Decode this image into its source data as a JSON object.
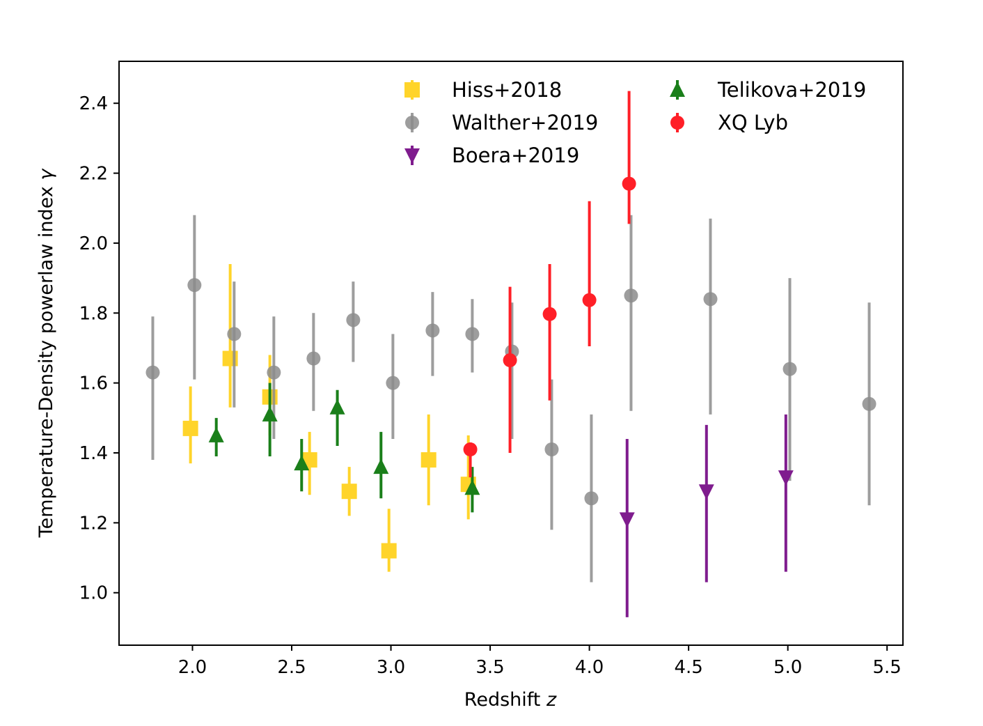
{
  "chart_data": {
    "type": "scatter",
    "title": "",
    "xlabel": "Redshift",
    "xlabel_var": "z",
    "ylabel": "Temperature-Density powerlaw index",
    "ylabel_var": "γ",
    "xlim": [
      1.63,
      5.58
    ],
    "ylim": [
      0.85,
      2.52
    ],
    "xticks": [
      2.0,
      2.5,
      3.0,
      3.5,
      4.0,
      4.5,
      5.0,
      5.5
    ],
    "yticks": [
      1.0,
      1.2,
      1.4,
      1.6,
      1.8,
      2.0,
      2.2,
      2.4
    ],
    "xtick_labels": [
      "2.0",
      "2.5",
      "3.0",
      "3.5",
      "4.0",
      "4.5",
      "5.0",
      "5.5"
    ],
    "ytick_labels": [
      "1.0",
      "1.2",
      "1.4",
      "1.6",
      "1.8",
      "2.0",
      "2.2",
      "2.4"
    ],
    "grid": false,
    "legend_position": "top-right",
    "legend_columns": 2,
    "series": [
      {
        "name": "Hiss+2018",
        "marker": "square",
        "color": "#FFD42A",
        "points": [
          {
            "x": 1.99,
            "y": 1.47,
            "lo": 1.37,
            "hi": 1.59
          },
          {
            "x": 2.19,
            "y": 1.67,
            "lo": 1.53,
            "hi": 1.94
          },
          {
            "x": 2.39,
            "y": 1.56,
            "lo": 1.45,
            "hi": 1.68
          },
          {
            "x": 2.59,
            "y": 1.38,
            "lo": 1.28,
            "hi": 1.46
          },
          {
            "x": 2.79,
            "y": 1.29,
            "lo": 1.22,
            "hi": 1.36
          },
          {
            "x": 2.99,
            "y": 1.12,
            "lo": 1.06,
            "hi": 1.24
          },
          {
            "x": 3.19,
            "y": 1.38,
            "lo": 1.25,
            "hi": 1.51
          },
          {
            "x": 3.39,
            "y": 1.31,
            "lo": 1.21,
            "hi": 1.45
          }
        ]
      },
      {
        "name": "Walther+2019",
        "marker": "circle",
        "color": "#8C8C8C",
        "points": [
          {
            "x": 1.8,
            "y": 1.63,
            "lo": 1.38,
            "hi": 1.79
          },
          {
            "x": 2.01,
            "y": 1.88,
            "lo": 1.61,
            "hi": 2.08
          },
          {
            "x": 2.21,
            "y": 1.74,
            "lo": 1.53,
            "hi": 1.89
          },
          {
            "x": 2.41,
            "y": 1.63,
            "lo": 1.44,
            "hi": 1.79
          },
          {
            "x": 2.61,
            "y": 1.67,
            "lo": 1.52,
            "hi": 1.8
          },
          {
            "x": 2.81,
            "y": 1.78,
            "lo": 1.66,
            "hi": 1.89
          },
          {
            "x": 3.01,
            "y": 1.6,
            "lo": 1.44,
            "hi": 1.74
          },
          {
            "x": 3.21,
            "y": 1.75,
            "lo": 1.62,
            "hi": 1.86
          },
          {
            "x": 3.41,
            "y": 1.74,
            "lo": 1.63,
            "hi": 1.84
          },
          {
            "x": 3.61,
            "y": 1.69,
            "lo": 1.44,
            "hi": 1.83
          },
          {
            "x": 3.81,
            "y": 1.41,
            "lo": 1.18,
            "hi": 1.61
          },
          {
            "x": 4.01,
            "y": 1.27,
            "lo": 1.03,
            "hi": 1.51
          },
          {
            "x": 4.21,
            "y": 1.85,
            "lo": 1.52,
            "hi": 2.08
          },
          {
            "x": 4.61,
            "y": 1.84,
            "lo": 1.51,
            "hi": 2.07
          },
          {
            "x": 5.01,
            "y": 1.64,
            "lo": 1.32,
            "hi": 1.9
          },
          {
            "x": 5.41,
            "y": 1.54,
            "lo": 1.25,
            "hi": 1.83
          }
        ]
      },
      {
        "name": "Boera+2019",
        "marker": "triangle-down",
        "color": "#7F1C8E",
        "points": [
          {
            "x": 4.19,
            "y": 1.21,
            "lo": 0.93,
            "hi": 1.44
          },
          {
            "x": 4.59,
            "y": 1.29,
            "lo": 1.03,
            "hi": 1.48
          },
          {
            "x": 4.99,
            "y": 1.33,
            "lo": 1.06,
            "hi": 1.51
          }
        ]
      },
      {
        "name": "Telikova+2019",
        "marker": "triangle-up",
        "color": "#1A7F1A",
        "points": [
          {
            "x": 2.12,
            "y": 1.45,
            "lo": 1.39,
            "hi": 1.5
          },
          {
            "x": 2.39,
            "y": 1.51,
            "lo": 1.39,
            "hi": 1.6
          },
          {
            "x": 2.55,
            "y": 1.37,
            "lo": 1.29,
            "hi": 1.44
          },
          {
            "x": 2.73,
            "y": 1.53,
            "lo": 1.42,
            "hi": 1.58
          },
          {
            "x": 2.95,
            "y": 1.36,
            "lo": 1.27,
            "hi": 1.46
          },
          {
            "x": 3.41,
            "y": 1.3,
            "lo": 1.23,
            "hi": 1.36
          }
        ]
      },
      {
        "name": "XQ Lyb",
        "marker": "circle",
        "color": "#FF1F27",
        "points": [
          {
            "x": 3.4,
            "y": 1.41,
            "lo": 1.33,
            "hi": 1.43
          },
          {
            "x": 3.6,
            "y": 1.665,
            "lo": 1.4,
            "hi": 1.875
          },
          {
            "x": 3.8,
            "y": 1.797,
            "lo": 1.55,
            "hi": 1.94
          },
          {
            "x": 4.0,
            "y": 1.837,
            "lo": 1.705,
            "hi": 2.12
          },
          {
            "x": 4.2,
            "y": 2.17,
            "lo": 2.055,
            "hi": 2.435
          }
        ]
      }
    ]
  }
}
